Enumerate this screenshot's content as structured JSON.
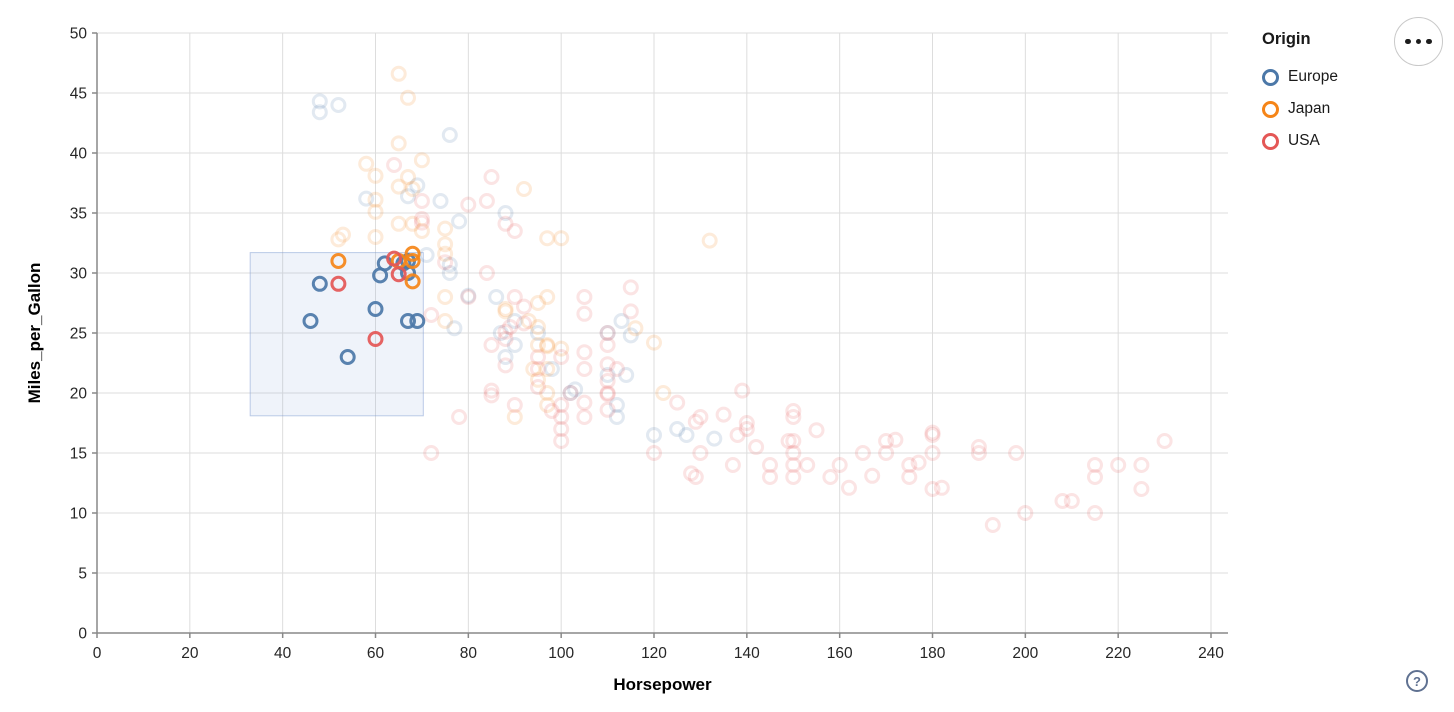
{
  "legend": {
    "title": "Origin",
    "items": [
      {
        "label": "Europe",
        "color": "#4c78a8"
      },
      {
        "label": "Japan",
        "color": "#f58518"
      },
      {
        "label": "USA",
        "color": "#e45756"
      }
    ]
  },
  "controls": {
    "actions_menu_icon": "ellipsis",
    "help_icon_glyph": "?"
  },
  "colors": {
    "europe": "#4c78a8",
    "japan": "#f58518",
    "usa": "#e45756",
    "grid": "#dddddd",
    "axis": "#888888",
    "tick_label": "#262626",
    "brush_fill": "rgba(125,155,210,0.12)",
    "brush_stroke": "rgba(125,155,210,0.5)"
  },
  "chart_data": {
    "type": "scatter",
    "xlabel": "Horsepower",
    "ylabel": "Miles_per_Gallon",
    "xlim": [
      0,
      243
    ],
    "ylim": [
      0,
      50
    ],
    "x_ticks": [
      0,
      20,
      40,
      60,
      80,
      100,
      120,
      140,
      160,
      180,
      200,
      220,
      240
    ],
    "y_ticks": [
      0,
      5,
      10,
      15,
      20,
      25,
      30,
      35,
      40,
      45,
      50
    ],
    "grid": true,
    "legend_position": "top-right",
    "point_opacity_selected": 0.92,
    "point_opacity_unselected": 0.16,
    "brush": {
      "x": [
        33,
        70.3
      ],
      "y": [
        18.1,
        31.7
      ]
    },
    "series": [
      {
        "name": "Europe",
        "color": "#4c78a8",
        "points": [
          [
            46,
            26
          ],
          [
            48,
            29.1
          ],
          [
            54,
            23
          ],
          [
            60,
            27
          ],
          [
            61,
            29.8
          ],
          [
            62,
            30.8
          ],
          [
            66,
            30.8
          ],
          [
            67,
            30
          ],
          [
            67,
            31
          ],
          [
            67,
            26
          ],
          [
            69,
            26
          ],
          [
            48,
            44.3
          ],
          [
            48,
            43.4
          ],
          [
            52,
            44
          ],
          [
            76,
            41.5
          ],
          [
            58,
            36.2
          ],
          [
            67,
            36.4
          ],
          [
            69,
            37.3
          ],
          [
            74,
            36
          ],
          [
            78,
            34.3
          ],
          [
            88,
            35
          ],
          [
            71,
            31.5
          ],
          [
            76,
            30.7
          ],
          [
            76,
            30
          ],
          [
            80,
            28.1
          ],
          [
            86,
            28
          ],
          [
            90,
            26
          ],
          [
            87,
            25
          ],
          [
            90,
            24
          ],
          [
            95,
            25
          ],
          [
            113,
            26
          ],
          [
            110,
            25
          ],
          [
            115,
            24.8
          ],
          [
            114,
            21.5
          ],
          [
            103,
            20.3
          ],
          [
            112,
            19
          ],
          [
            112,
            18
          ],
          [
            98,
            22
          ],
          [
            102,
            20
          ],
          [
            125,
            17
          ],
          [
            133,
            16.2
          ],
          [
            120,
            16.5
          ],
          [
            127,
            16.5
          ],
          [
            77,
            25.4
          ],
          [
            88,
            23
          ],
          [
            110,
            21.5
          ]
        ]
      },
      {
        "name": "Japan",
        "color": "#f58518",
        "points": [
          [
            52,
            31
          ],
          [
            65,
            31
          ],
          [
            68,
            31.6
          ],
          [
            68,
            31
          ],
          [
            68,
            29.3
          ],
          [
            65,
            46.6
          ],
          [
            67,
            44.6
          ],
          [
            65,
            40.8
          ],
          [
            70,
            39.4
          ],
          [
            58,
            39.1
          ],
          [
            60,
            38.1
          ],
          [
            67,
            38
          ],
          [
            68,
            37
          ],
          [
            65,
            37.2
          ],
          [
            92,
            37
          ],
          [
            60,
            36.1
          ],
          [
            60,
            35.1
          ],
          [
            75,
            33.7
          ],
          [
            70,
            33.5
          ],
          [
            65,
            34.1
          ],
          [
            68,
            34.1
          ],
          [
            52,
            32.8
          ],
          [
            53,
            33.2
          ],
          [
            60,
            33
          ],
          [
            132,
            32.7
          ],
          [
            75,
            32.4
          ],
          [
            75,
            31.6
          ],
          [
            97,
            32.9
          ],
          [
            100,
            32.9
          ],
          [
            88,
            27
          ],
          [
            88,
            26.8
          ],
          [
            93,
            26
          ],
          [
            95,
            25.5
          ],
          [
            95,
            24
          ],
          [
            94,
            22
          ],
          [
            97,
            28
          ],
          [
            97,
            24
          ],
          [
            97,
            23.9
          ],
          [
            97,
            22
          ],
          [
            97,
            20
          ],
          [
            97,
            19
          ],
          [
            90,
            18
          ],
          [
            95,
            21.1
          ],
          [
            100,
            23.7
          ],
          [
            116,
            25.4
          ],
          [
            120,
            24.2
          ],
          [
            122,
            20
          ],
          [
            75,
            26
          ],
          [
            75,
            28
          ],
          [
            95,
            27.5
          ]
        ]
      },
      {
        "name": "USA",
        "color": "#e45756",
        "points": [
          [
            52,
            29.1
          ],
          [
            60,
            24.5
          ],
          [
            64,
            31.2
          ],
          [
            65,
            29.9
          ],
          [
            64,
            39
          ],
          [
            85,
            38
          ],
          [
            84,
            36
          ],
          [
            80,
            35.7
          ],
          [
            70,
            36
          ],
          [
            70,
            34.2
          ],
          [
            70,
            34.5
          ],
          [
            90,
            33.5
          ],
          [
            88,
            34.1
          ],
          [
            84,
            30
          ],
          [
            75,
            30.9
          ],
          [
            115,
            28.8
          ],
          [
            115,
            26.8
          ],
          [
            105,
            26.6
          ],
          [
            92,
            27.2
          ],
          [
            92,
            25.8
          ],
          [
            105,
            28
          ],
          [
            90,
            28
          ],
          [
            80,
            28
          ],
          [
            88,
            25.1
          ],
          [
            89,
            25.5
          ],
          [
            88,
            24.5
          ],
          [
            72,
            26.5
          ],
          [
            85,
            24
          ],
          [
            105,
            22
          ],
          [
            105,
            23.4
          ],
          [
            110,
            25
          ],
          [
            110,
            24
          ],
          [
            100,
            23
          ],
          [
            95,
            23
          ],
          [
            95,
            22
          ],
          [
            105,
            18
          ],
          [
            98,
            18.5
          ],
          [
            110,
            18.6
          ],
          [
            110,
            21
          ],
          [
            110,
            20
          ],
          [
            85,
            20.2
          ],
          [
            85,
            19.8
          ],
          [
            88,
            22.3
          ],
          [
            110,
            22.4
          ],
          [
            110,
            19.9
          ],
          [
            105,
            19.2
          ],
          [
            95,
            20.5
          ],
          [
            112,
            22
          ],
          [
            100,
            19
          ],
          [
            100,
            18
          ],
          [
            100,
            17
          ],
          [
            102,
            20
          ],
          [
            78,
            18
          ],
          [
            90,
            19
          ],
          [
            100,
            16
          ],
          [
            129,
            13
          ],
          [
            128,
            13.3
          ],
          [
            120,
            15
          ],
          [
            72,
            15
          ],
          [
            130,
            18
          ],
          [
            165,
            15
          ],
          [
            150,
            18
          ],
          [
            150,
            16
          ],
          [
            150,
            15
          ],
          [
            150,
            14
          ],
          [
            150,
            13
          ],
          [
            140,
            17
          ],
          [
            140,
            17.5
          ],
          [
            198,
            15
          ],
          [
            220,
            14
          ],
          [
            215,
            14
          ],
          [
            225,
            14
          ],
          [
            190,
            15
          ],
          [
            190,
            15.5
          ],
          [
            170,
            15
          ],
          [
            170,
            16
          ],
          [
            160,
            14
          ],
          [
            158,
            13
          ],
          [
            145,
            13
          ],
          [
            145,
            14
          ],
          [
            137,
            14
          ],
          [
            175,
            13
          ],
          [
            175,
            14
          ],
          [
            180,
            12
          ],
          [
            180,
            15
          ],
          [
            180,
            16.5
          ],
          [
            180,
            16.7
          ],
          [
            225,
            12
          ],
          [
            215,
            13
          ],
          [
            215,
            10
          ],
          [
            230,
            16
          ],
          [
            210,
            11
          ],
          [
            208,
            11
          ],
          [
            200,
            10
          ],
          [
            193,
            9
          ],
          [
            155,
            16.9
          ],
          [
            142,
            15.5
          ],
          [
            125,
            19.2
          ],
          [
            150,
            18.5
          ],
          [
            129,
            17.6
          ],
          [
            138,
            16.5
          ],
          [
            135,
            18.2
          ],
          [
            139,
            20.2
          ],
          [
            149,
            16
          ],
          [
            130,
            15
          ],
          [
            153,
            14
          ],
          [
            162,
            12.1
          ],
          [
            167,
            13.1
          ],
          [
            172,
            16.1
          ],
          [
            177,
            14.2
          ],
          [
            182,
            12.1
          ]
        ]
      }
    ]
  }
}
